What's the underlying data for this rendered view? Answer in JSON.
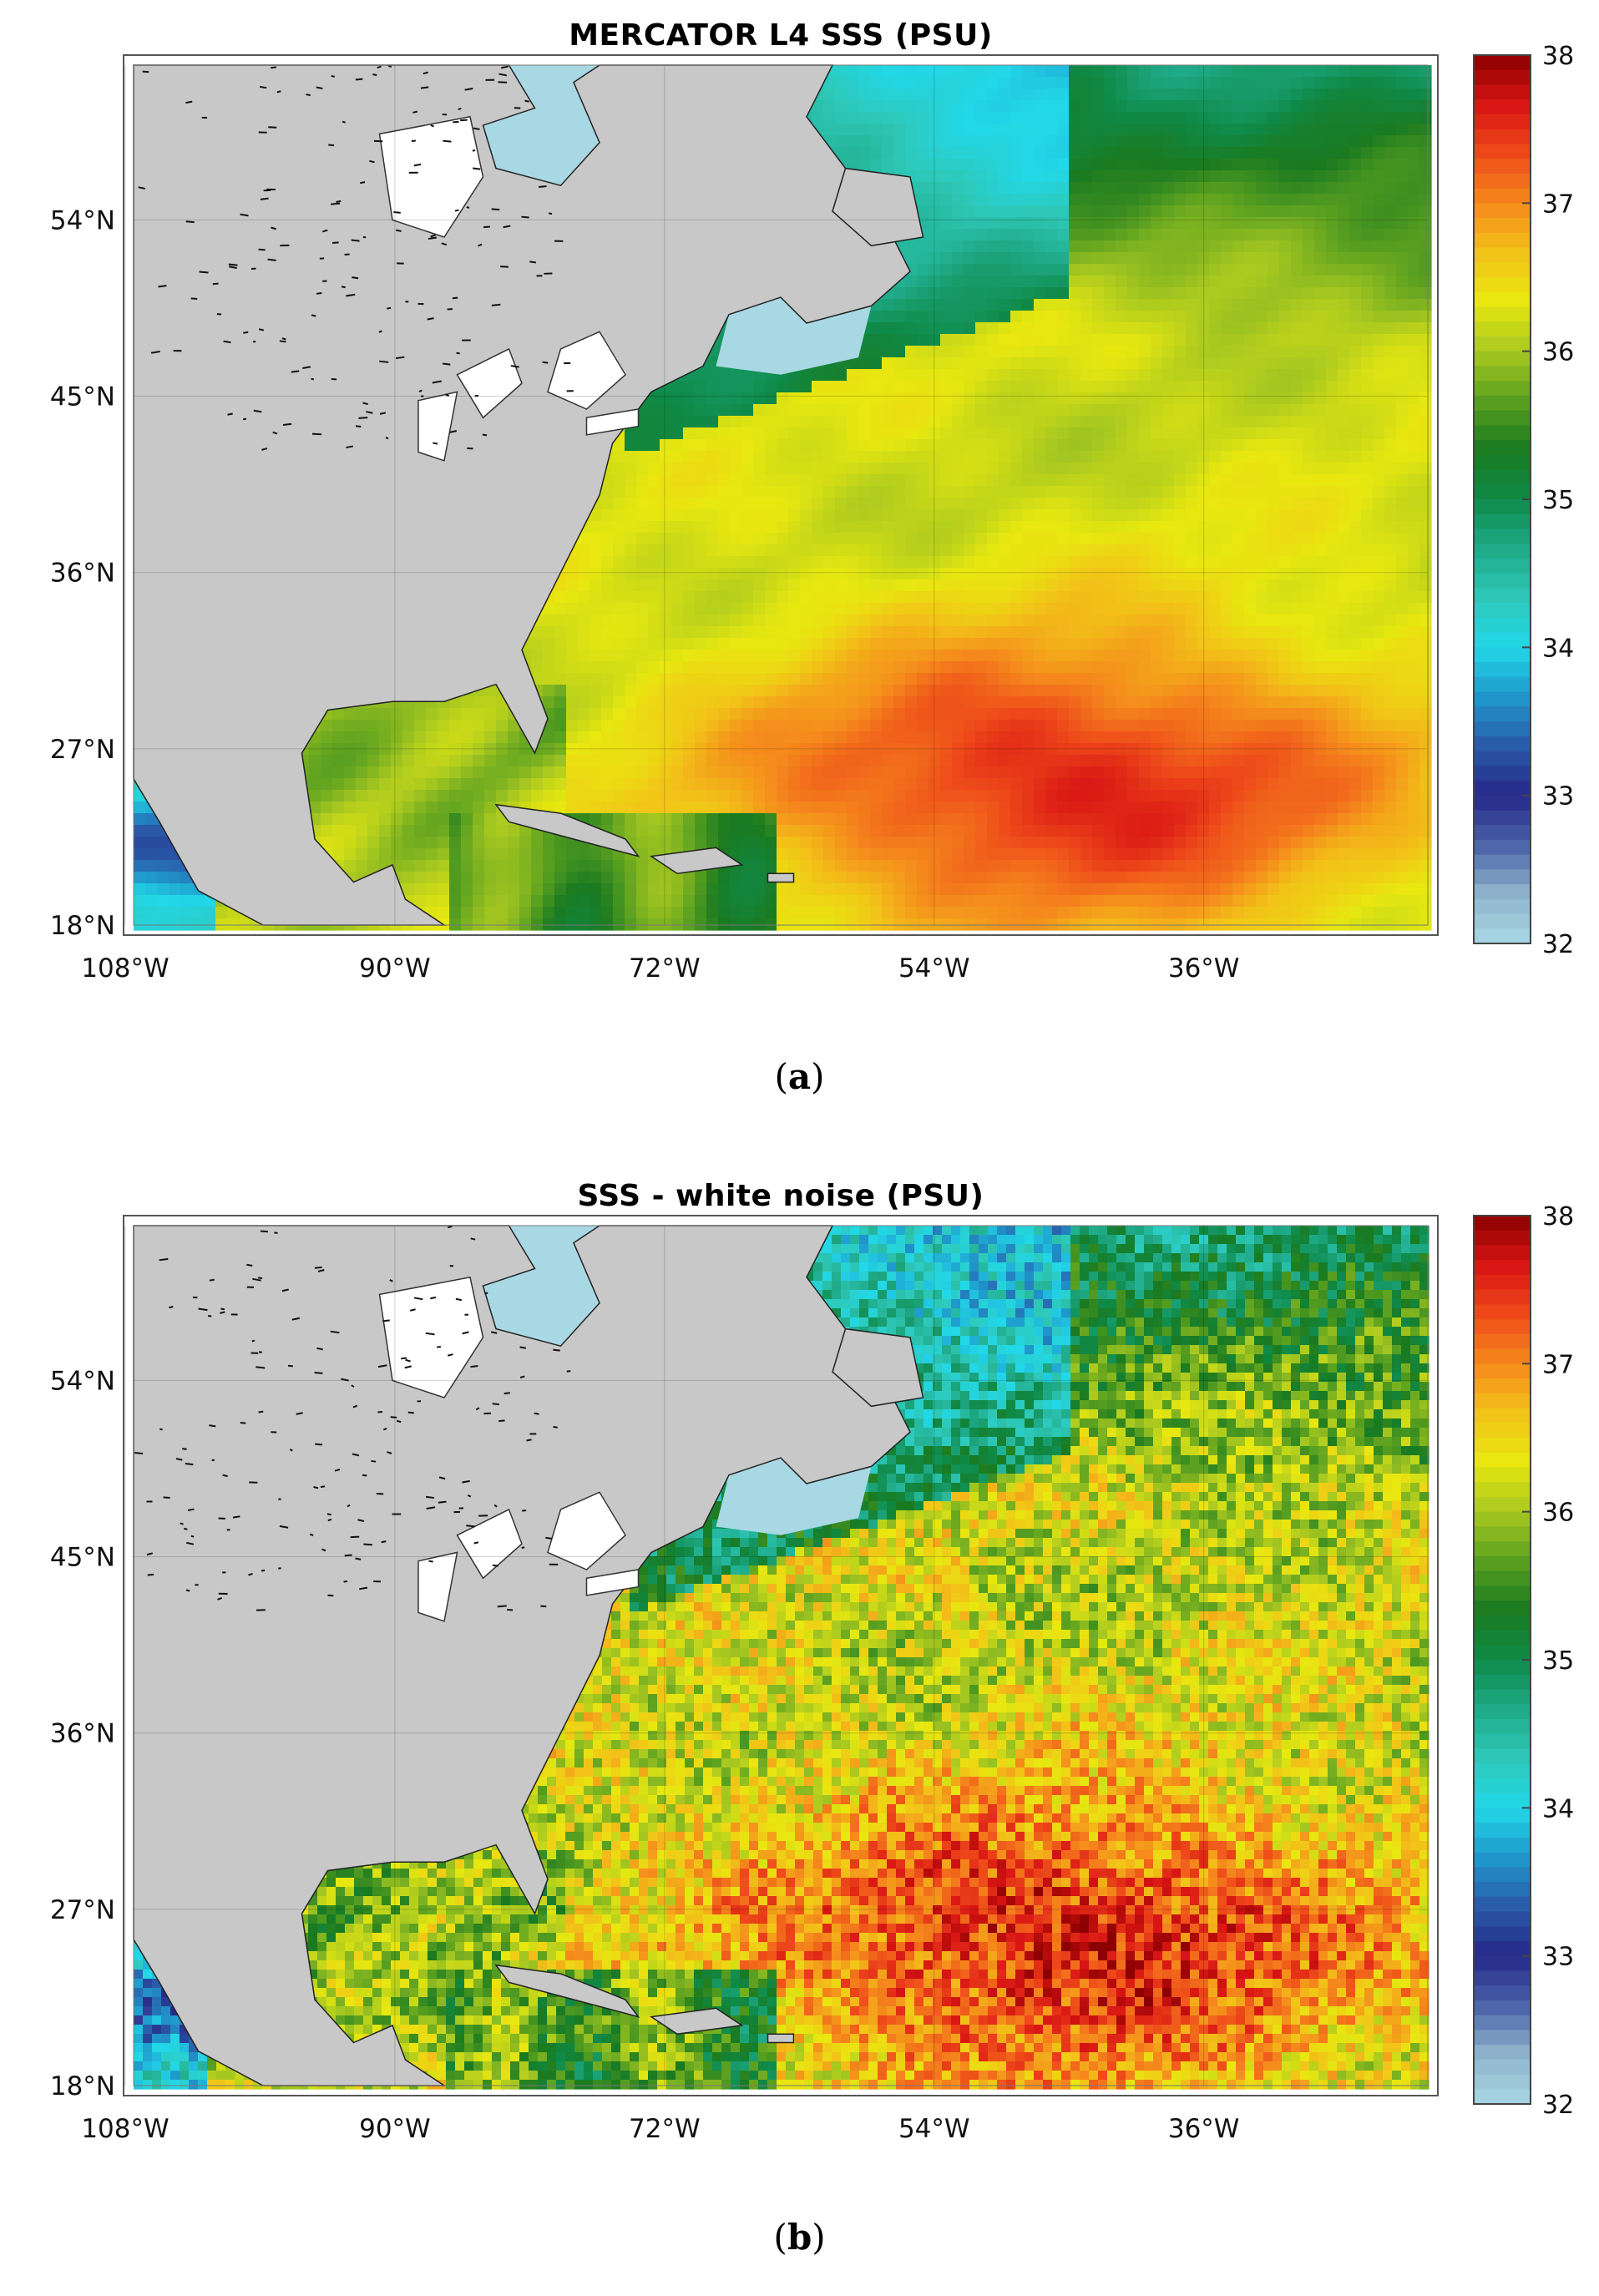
{
  "colors": {
    "land": "#c8c8c8",
    "lake": "#ffffff",
    "frame": "#555555",
    "colormap": [
      "#a8d8e4",
      "#8fb3cc",
      "#4a63a8",
      "#25288a",
      "#2a5aa8",
      "#1f98cc",
      "#22d8e8",
      "#2ec8b8",
      "#1faa88",
      "#0f8a48",
      "#1a7a20",
      "#5aa020",
      "#a8c820",
      "#e8e810",
      "#f2c218",
      "#f58a1c",
      "#ee4a1a",
      "#d81414",
      "#8c0000"
    ]
  },
  "axes": {
    "lon_ticks": [
      "108°W",
      "90°W",
      "72°W",
      "54°W",
      "36°W"
    ],
    "lat_ticks": [
      "54°N",
      "45°N",
      "36°N",
      "27°N",
      "18°N"
    ]
  },
  "colorbar": {
    "min": 32,
    "max": 38,
    "tick_labels": [
      "38",
      "37",
      "36",
      "35",
      "34",
      "33",
      "32"
    ]
  },
  "panels": [
    {
      "id": "a",
      "title": "MERCATOR L4 SSS  (PSU)",
      "label": "a",
      "style": "smooth"
    },
    {
      "id": "b",
      "title": "SSS - white noise (PSU)",
      "label": "b",
      "style": "noisy"
    }
  ]
}
